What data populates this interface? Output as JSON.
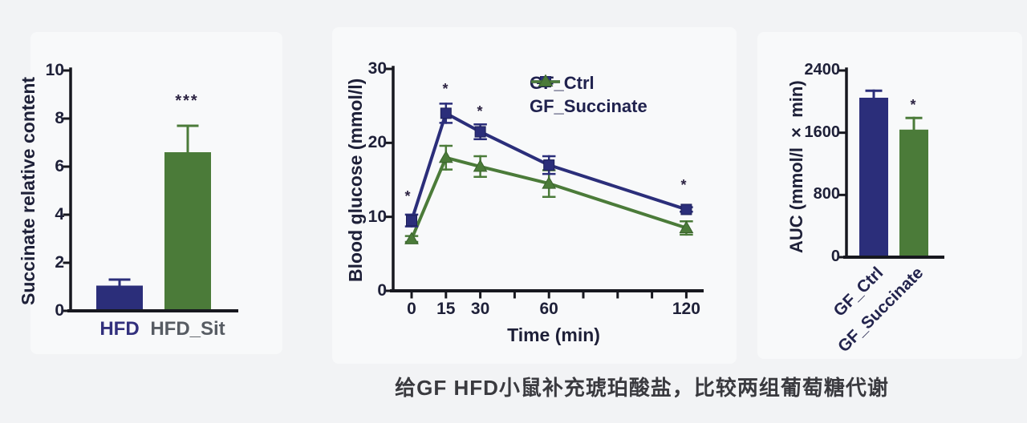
{
  "colors": {
    "navy": "#2b2e7a",
    "navy_dark": "#1d2059",
    "green": "#4b7b39",
    "green_dark": "#3a622c",
    "axis": "#17181f",
    "ink": "#1e2038",
    "gray_label": "#575c63",
    "caption": "#3a3a3f",
    "background": "#f2f3f5"
  },
  "caption": {
    "text": "给GF HFD小鼠补充琥珀酸盐，比较两组葡萄糖代谢"
  },
  "chart_data": [
    {
      "id": "succinate_relative_content",
      "type": "bar",
      "title": "",
      "ylabel": "Succinate relative content",
      "xlabel": "",
      "ylim": [
        0,
        10
      ],
      "yticks": [
        0,
        2,
        4,
        6,
        8,
        10
      ],
      "categories": [
        "HFD",
        "HFD_Sit"
      ],
      "values": [
        1.05,
        6.6
      ],
      "errors": [
        0.25,
        1.1
      ],
      "bar_colors": [
        "navy",
        "green"
      ],
      "category_colors": [
        "navy",
        "gray"
      ],
      "significance": {
        "label": "***",
        "on": "HFD_Sit"
      },
      "grid": false
    },
    {
      "id": "blood_glucose_ogtt",
      "type": "line",
      "title": "",
      "ylabel": "Blood glucose (mmol/l)",
      "xlabel": "Time (min)",
      "ylim": [
        0,
        30
      ],
      "yticks": [
        0,
        10,
        20,
        30
      ],
      "x": [
        0,
        15,
        30,
        60,
        120
      ],
      "xticks_all": [
        0,
        15,
        30,
        45,
        60,
        75,
        90,
        105,
        120
      ],
      "xticks_labeled": [
        0,
        15,
        30,
        60,
        120
      ],
      "series": [
        {
          "name": "GF_Ctrl",
          "color": "navy",
          "marker": "square",
          "values": [
            9.5,
            24,
            21.5,
            17,
            11
          ],
          "errors": [
            0.8,
            1.3,
            1.0,
            1.2,
            0.3
          ]
        },
        {
          "name": "GF_Succinate",
          "color": "green",
          "marker": "triangle",
          "values": [
            7,
            18,
            16.8,
            14.5,
            8.5
          ],
          "errors": [
            0.4,
            1.6,
            1.4,
            1.8,
            0.9
          ]
        }
      ],
      "significance": {
        "label": "*",
        "at_x": [
          0,
          15,
          30,
          120
        ]
      },
      "legend_position": "top-right",
      "grid": false
    },
    {
      "id": "auc",
      "type": "bar",
      "title": "",
      "ylabel": "AUC (mmol/l × min)",
      "xlabel": "",
      "ylim": [
        0,
        2400
      ],
      "yticks": [
        0,
        800,
        1600,
        2400
      ],
      "categories": [
        "GF_Ctrl",
        "GF_Succinate"
      ],
      "values": [
        2050,
        1640
      ],
      "errors": [
        90,
        150
      ],
      "bar_colors": [
        "navy",
        "green"
      ],
      "xtick_rotation": 45,
      "significance": {
        "label": "*",
        "on": "GF_Succinate"
      },
      "grid": false
    }
  ]
}
